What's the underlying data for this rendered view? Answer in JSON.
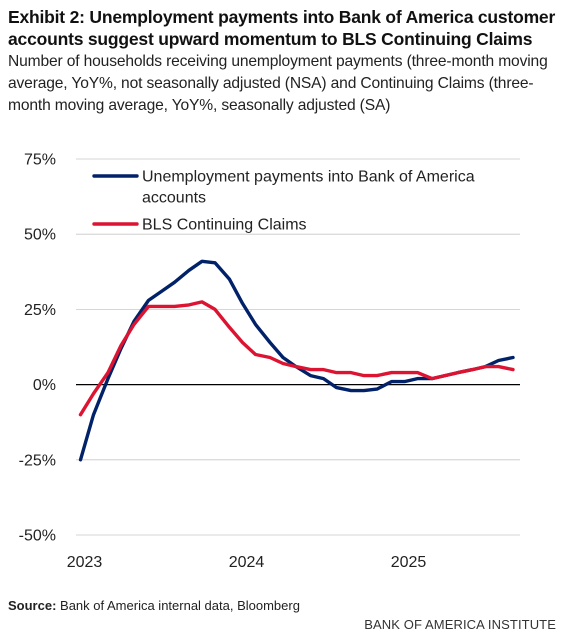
{
  "header": {
    "title": "Exhibit 2: Unemployment payments into Bank of America customer accounts suggest upward momentum to BLS Continuing Claims",
    "subtitle": "Number of households receiving unemployment payments (three-month moving average, YoY%, not seasonally adjusted (NSA) and Continuing Claims (three-month moving average, YoY%, seasonally adjusted (SA)"
  },
  "footer": {
    "source_label": "Source:",
    "source_text": "Bank of America internal data, Bloomberg",
    "brand": "BANK OF AMERICA INSTITUTE"
  },
  "chart_data": {
    "type": "line",
    "ylim": [
      -50,
      75
    ],
    "yticks": [
      75,
      50,
      25,
      0,
      -25,
      -50
    ],
    "ytick_labels": [
      "75%",
      "50%",
      "25%",
      "0%",
      "-25%",
      "-50%"
    ],
    "xlim": [
      2023.0,
      2025.75
    ],
    "xticks": [
      2023,
      2024,
      2025
    ],
    "xtick_labels": [
      "2023",
      "2024",
      "2025"
    ],
    "grid": "horizontal",
    "zero_line": true,
    "legend_position": "top",
    "legend": [
      "Unemployment payments into Bank of America accounts",
      "BLS Continuing Claims"
    ],
    "series": [
      {
        "name": "Unemployment payments into Bank of America accounts",
        "color": "#012169",
        "x": [
          2023.0,
          2023.08,
          2023.17,
          2023.25,
          2023.33,
          2023.42,
          2023.5,
          2023.58,
          2023.67,
          2023.75,
          2023.83,
          2023.92,
          2024.0,
          2024.08,
          2024.17,
          2024.25,
          2024.33,
          2024.42,
          2024.5,
          2024.58,
          2024.67,
          2024.75,
          2024.83,
          2024.92,
          2025.0,
          2025.08,
          2025.17,
          2025.25,
          2025.33,
          2025.42,
          2025.5,
          2025.58,
          2025.67
        ],
        "y": [
          -25,
          -10,
          2,
          12,
          21,
          28,
          31,
          34,
          38,
          41,
          40.5,
          35,
          27,
          20,
          14,
          9,
          6,
          3,
          2,
          -1,
          -2,
          -2,
          -1.5,
          1,
          1,
          2,
          2,
          3,
          4,
          5,
          6,
          8,
          9
        ]
      },
      {
        "name": "BLS Continuing Claims",
        "color": "#dc1431",
        "x": [
          2023.0,
          2023.08,
          2023.17,
          2023.25,
          2023.33,
          2023.42,
          2023.5,
          2023.58,
          2023.67,
          2023.75,
          2023.83,
          2023.92,
          2024.0,
          2024.08,
          2024.17,
          2024.25,
          2024.33,
          2024.42,
          2024.5,
          2024.58,
          2024.67,
          2024.75,
          2024.83,
          2024.92,
          2025.0,
          2025.08,
          2025.17,
          2025.25,
          2025.33,
          2025.42,
          2025.5,
          2025.58,
          2025.67
        ],
        "y": [
          -10,
          -3,
          4,
          13,
          20,
          26,
          26,
          26,
          26.5,
          27.5,
          25,
          19,
          14,
          10,
          9,
          7,
          6,
          5,
          5,
          4,
          4,
          3,
          3,
          4,
          4,
          4,
          2,
          3,
          4,
          5,
          6,
          6,
          5
        ]
      }
    ]
  }
}
